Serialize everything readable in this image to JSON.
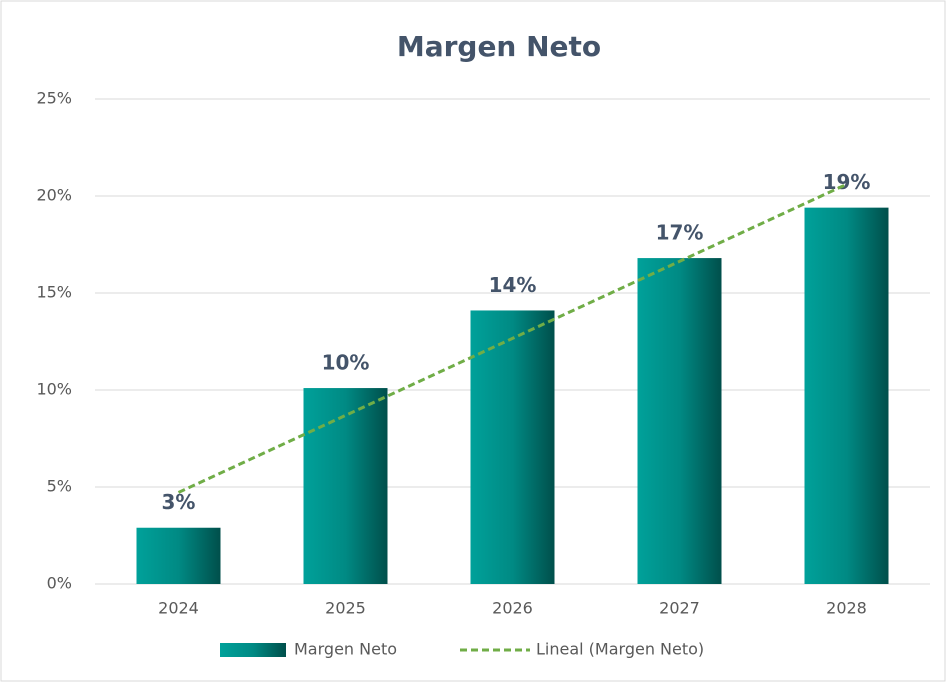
{
  "chart_data": {
    "type": "bar",
    "title": "Margen Neto",
    "categories": [
      "2024",
      "2025",
      "2026",
      "2027",
      "2028"
    ],
    "series": [
      {
        "name": "Margen Neto",
        "type": "bar",
        "color": "#00a19a",
        "values": [
          2.9,
          10.1,
          14.1,
          16.8,
          19.4
        ],
        "value_labels": [
          "3%",
          "10%",
          "14%",
          "17%",
          "19%"
        ]
      },
      {
        "name": "Lineal (Margen Neto)",
        "type": "line",
        "color": "#70ad47",
        "dashed": true,
        "values": [
          4.72,
          8.69,
          12.66,
          16.63,
          20.6
        ]
      }
    ],
    "ylim": [
      0,
      25
    ],
    "yticks": [
      {
        "value": 0,
        "label": "0%"
      },
      {
        "value": 5,
        "label": "5%"
      },
      {
        "value": 10,
        "label": "10%"
      },
      {
        "value": 15,
        "label": "15%"
      },
      {
        "value": 20,
        "label": "20%"
      },
      {
        "value": 25,
        "label": "25%"
      }
    ],
    "grid": true,
    "legend": "bottom"
  }
}
